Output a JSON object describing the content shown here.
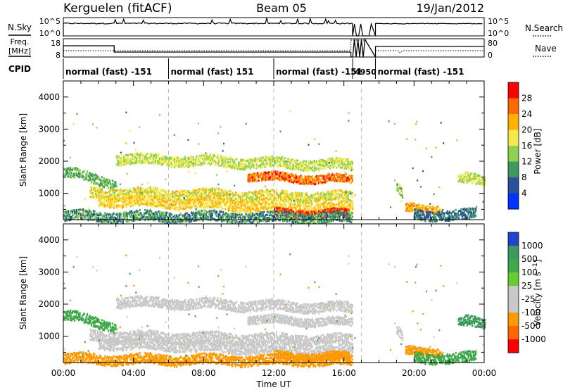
{
  "chart_data": {
    "type": "heatmap",
    "header": {
      "station": "Kerguelen (fitACF)",
      "beam": "Beam 05",
      "date": "19/Jan/2012"
    },
    "time_axis": {
      "xlim": [
        0,
        24
      ],
      "ticks": [
        0,
        4,
        8,
        12,
        16,
        20,
        24
      ],
      "tick_labels": [
        "00:00",
        "04:00",
        "08:00",
        "12:00",
        "16:00",
        "20:00",
        "00:00"
      ],
      "xlabel": "Time UT",
      "dashed_markers": [
        6,
        12,
        17
      ]
    },
    "noise_panel": {
      "left_label": "N.Sky",
      "right_label": "N.Search",
      "left_ticks": [
        "10^5",
        "10^0"
      ],
      "right_ticks": [
        "10^5",
        "10^0"
      ]
    },
    "freq_panel": {
      "left_label_line1": "Freq.",
      "left_label_line2": "[MHz]",
      "right_label": "Nave",
      "left_ticks": [
        "18",
        "8"
      ],
      "right_ticks": [
        "80",
        "0"
      ],
      "cpid_label": "CPID"
    },
    "cpid_segments": [
      {
        "start": 0,
        "end": 6,
        "label": "normal (fast) -151"
      },
      {
        "start": 6,
        "end": 12,
        "label": "normal (fast) 151"
      },
      {
        "start": 12,
        "end": 16.5,
        "label": "normal (fast) -151"
      },
      {
        "start": 16.5,
        "end": 17.8,
        "label": "4950"
      },
      {
        "start": 17.8,
        "end": 24,
        "label": "normal (fast) -151"
      }
    ],
    "range_axis": {
      "ylim": [
        180,
        4500
      ],
      "ticks": [
        1000,
        2000,
        3000,
        4000
      ],
      "tick_labels": [
        "1000",
        "2000",
        "3000",
        "4000"
      ],
      "ylabel": "Slant Range [km]"
    },
    "power_panel": {
      "colorbar_label": "Power [dB]",
      "colorbar_ticks": [
        "28",
        "24",
        "20",
        "16",
        "12",
        "8",
        "4"
      ],
      "colors": [
        "#ff0000",
        "#ff6a00",
        "#ffb000",
        "#f5e84c",
        "#8fd14f",
        "#3c9a5e",
        "#2c4fa0",
        "#0033ff"
      ]
    },
    "velocity_panel": {
      "colorbar_label": "Velocity [m s^-1]",
      "colorbar_ticks": [
        "1000",
        "500",
        "100",
        "25",
        "-25",
        "-100",
        "-500",
        "-1000"
      ],
      "colors": [
        "#2244cc",
        "#3c9a5e",
        "#3fa84a",
        "#66cc33",
        "#c8c8c8",
        "#c8c8c8",
        "#ff9900",
        "#ff6600",
        "#ff0000"
      ]
    },
    "echo_bands": [
      {
        "t0": 0.0,
        "t1": 3.0,
        "r0": 1700,
        "r1": 1300,
        "p": 12,
        "v": 100
      },
      {
        "t0": 3.0,
        "t1": 16.5,
        "r0": 2100,
        "r1": 1900,
        "p": 16,
        "v": 0
      },
      {
        "t0": 10.5,
        "t1": 16.5,
        "r0": 1550,
        "r1": 1450,
        "p": 26,
        "v": 0
      },
      {
        "t0": 1.5,
        "t1": 16.5,
        "r0": 1050,
        "r1": 900,
        "p": 18,
        "v": -10
      },
      {
        "t0": 2.0,
        "t1": 16.5,
        "r0": 800,
        "r1": 550,
        "p": 20,
        "v": -30
      },
      {
        "t0": 12.0,
        "t1": 16.3,
        "r0": 420,
        "r1": 380,
        "p": 28,
        "v": -100
      },
      {
        "t0": 0.0,
        "t1": 16.5,
        "r0": 320,
        "r1": 260,
        "p": 10,
        "v": -120
      },
      {
        "t0": 19.5,
        "t1": 21.5,
        "r0": 550,
        "r1": 550,
        "p": 22,
        "v": -200
      },
      {
        "t0": 20.0,
        "t1": 23.5,
        "r0": 350,
        "r1": 350,
        "p": 8,
        "v": 100
      },
      {
        "t0": 22.5,
        "t1": 24.0,
        "r0": 1500,
        "r1": 1400,
        "p": 16,
        "v": 500
      },
      {
        "t0": 19.0,
        "t1": 19.3,
        "r0": 1200,
        "r1": 1000,
        "p": 14,
        "v": 0
      }
    ]
  }
}
